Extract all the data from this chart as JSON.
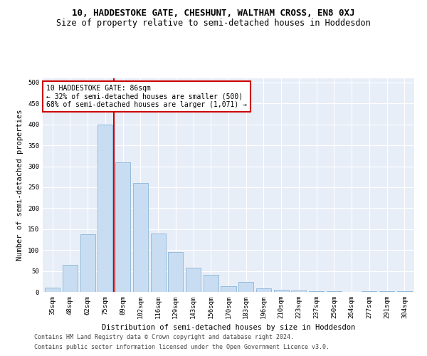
{
  "title": "10, HADDESTOKE GATE, CHESHUNT, WALTHAM CROSS, EN8 0XJ",
  "subtitle": "Size of property relative to semi-detached houses in Hoddesdon",
  "xlabel": "Distribution of semi-detached houses by size in Hoddesdon",
  "ylabel": "Number of semi-detached properties",
  "categories": [
    "35sqm",
    "48sqm",
    "62sqm",
    "75sqm",
    "89sqm",
    "102sqm",
    "116sqm",
    "129sqm",
    "143sqm",
    "156sqm",
    "170sqm",
    "183sqm",
    "196sqm",
    "210sqm",
    "223sqm",
    "237sqm",
    "250sqm",
    "264sqm",
    "277sqm",
    "291sqm",
    "304sqm"
  ],
  "values": [
    10,
    65,
    138,
    400,
    310,
    260,
    140,
    95,
    58,
    40,
    13,
    23,
    9,
    5,
    4,
    2,
    1,
    0,
    2,
    1,
    1
  ],
  "bar_color": "#c9ddf2",
  "bar_edge_color": "#8ab4d8",
  "vline_color": "#cc0000",
  "vline_x": 3.5,
  "annotation_text_line1": "10 HADDESTOKE GATE: 86sqm",
  "annotation_text_line2": "← 32% of semi-detached houses are smaller (500)",
  "annotation_text_line3": "68% of semi-detached houses are larger (1,071) →",
  "annotation_box_edge_color": "#cc0000",
  "ylim": [
    0,
    510
  ],
  "yticks": [
    0,
    50,
    100,
    150,
    200,
    250,
    300,
    350,
    400,
    450,
    500
  ],
  "footer1": "Contains HM Land Registry data © Crown copyright and database right 2024.",
  "footer2": "Contains public sector information licensed under the Open Government Licence v3.0.",
  "fig_bg_color": "#ffffff",
  "plot_bg_color": "#e8eef8",
  "title_fontsize": 9,
  "subtitle_fontsize": 8.5,
  "axis_label_fontsize": 7.5,
  "tick_fontsize": 6.5,
  "annotation_fontsize": 7,
  "footer_fontsize": 6
}
